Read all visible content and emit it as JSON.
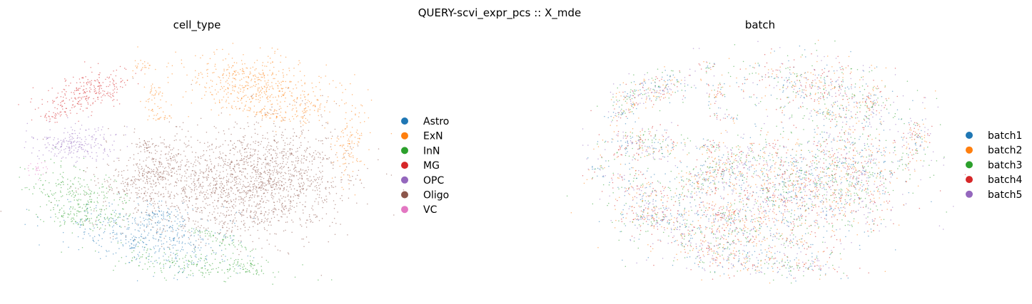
{
  "suptitle": "QUERY-scvi_expr_pcs :: X_mde",
  "chart_data": [
    {
      "type": "scatter",
      "title": "cell_type",
      "xlabel": "",
      "ylabel": "",
      "grid": false,
      "legend_placement": "right",
      "series": [
        {
          "name": "Astro",
          "color": "#1f77b4"
        },
        {
          "name": "ExN",
          "color": "#ff7f0e"
        },
        {
          "name": "InN",
          "color": "#2ca02c"
        },
        {
          "name": "MG",
          "color": "#d62728"
        },
        {
          "name": "OPC",
          "color": "#9467bd"
        },
        {
          "name": "Oligo",
          "color": "#8c564b"
        },
        {
          "name": "VC",
          "color": "#e377c2"
        }
      ]
    },
    {
      "type": "scatter",
      "title": "batch",
      "xlabel": "",
      "ylabel": "",
      "grid": false,
      "legend_placement": "right",
      "series": [
        {
          "name": "batch1",
          "color": "#1f77b4"
        },
        {
          "name": "batch2",
          "color": "#ff7f0e"
        },
        {
          "name": "batch3",
          "color": "#2ca02c"
        },
        {
          "name": "batch4",
          "color": "#d62728"
        },
        {
          "name": "batch5",
          "color": "#9467bd"
        }
      ]
    }
  ]
}
